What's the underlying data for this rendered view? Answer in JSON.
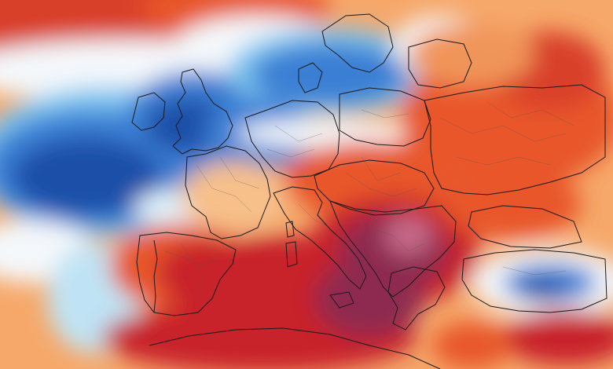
{
  "map": {
    "type": "temperature-anomaly-map",
    "region": "Europe",
    "palette": {
      "strong_cold": "#1f4fa8",
      "cold": "#3b7fd4",
      "cool": "#7fc6ef",
      "near_zero": "#f4f8fb",
      "warm": "#f7c08a",
      "hot": "#e8572c",
      "very_hot": "#c8202b",
      "extreme": "#8e2a4f",
      "peak": "#c76b8a",
      "border": "#1a1a1a",
      "subregion_border": "#555555"
    },
    "anomaly_zones": [
      {
        "name": "atlantic-cold-pool",
        "level": "strong_cold"
      },
      {
        "name": "british-isles-cold",
        "level": "cold"
      },
      {
        "name": "north-sea-baltic-cold",
        "level": "cold"
      },
      {
        "name": "iberia-heat",
        "level": "very_hot"
      },
      {
        "name": "mediterranean-heat",
        "level": "very_hot"
      },
      {
        "name": "balkan-extreme-heat",
        "level": "extreme"
      },
      {
        "name": "eastern-europe-warm",
        "level": "hot"
      },
      {
        "name": "anatolia-cold-spot",
        "level": "cold"
      }
    ]
  }
}
